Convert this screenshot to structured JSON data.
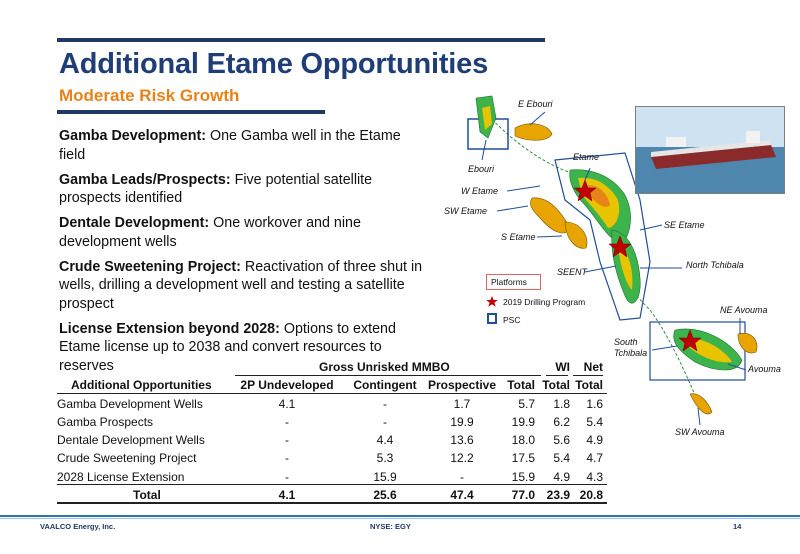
{
  "header": {
    "title": "Additional Etame Opportunities",
    "subtitle": "Moderate Risk Growth"
  },
  "bullets": [
    {
      "bold": "Gamba Development:",
      "text": " One Gamba well in the Etame field"
    },
    {
      "bold": "Gamba Leads/Prospects:",
      "text": " Five potential satellite prospects identified"
    },
    {
      "bold": "Dentale Development:",
      "text": " One workover and nine development wells"
    },
    {
      "bold": "Crude Sweetening Project:",
      "text": " Reactivation of three shut in wells, drilling a development well and testing a satellite prospect"
    },
    {
      "bold": "License Extension beyond 2028:",
      "text": " Options to extend Etame license up to 2038 and convert resources to reserves"
    }
  ],
  "table": {
    "group_headers": {
      "gross": "Gross Unrisked MMBO",
      "wi": "WI",
      "net": "Net"
    },
    "columns": [
      "Additional Opportunities",
      "2P Undeveloped",
      "Contingent",
      "Prospective",
      "Total",
      "Total",
      "Total"
    ],
    "rows": [
      [
        "Gamba Development Wells",
        "4.1",
        "-",
        "1.7",
        "5.7",
        "1.8",
        "1.6"
      ],
      [
        "Gamba Prospects",
        "-",
        "-",
        "19.9",
        "19.9",
        "6.2",
        "5.4"
      ],
      [
        "Dentale Development Wells",
        "-",
        "4.4",
        "13.6",
        "18.0",
        "5.6",
        "4.9"
      ],
      [
        "Crude Sweetening Project",
        "-",
        "5.3",
        "12.2",
        "17.5",
        "5.4",
        "4.7"
      ],
      [
        "2028 License Extension",
        "-",
        "15.9",
        "-",
        "15.9",
        "4.9",
        "4.3"
      ]
    ],
    "total": [
      "Total",
      "4.1",
      "25.6",
      "47.4",
      "77.0",
      "23.9",
      "20.8"
    ]
  },
  "map": {
    "labels": {
      "e_ebouri": "E Ebouri",
      "ebouri": "Ebouri",
      "etame": "Etame",
      "w_etame": "W Etame",
      "sw_etame": "SW Etame",
      "s_etame": "S Etame",
      "se_etame": "SE Etame",
      "seent": "SEENT",
      "north_tchibala": "North Tchibala",
      "ne_avouma": "NE Avouma",
      "south_tchibala": "South Tchibala",
      "avouma": "Avouma",
      "sw_avouma": "SW Avouma"
    },
    "legend": {
      "title": "Platforms",
      "drilling": "2019 Drilling Program",
      "psc": "PSC"
    },
    "colors": {
      "star": "#c00000",
      "psc": "#1f4e9a",
      "field_fill": "#e8a400",
      "pipeline": "#2f8f3f"
    }
  },
  "footer": {
    "company": "VAALCO Energy, Inc.",
    "ticker": "NYSE: EGY",
    "page": "14"
  }
}
